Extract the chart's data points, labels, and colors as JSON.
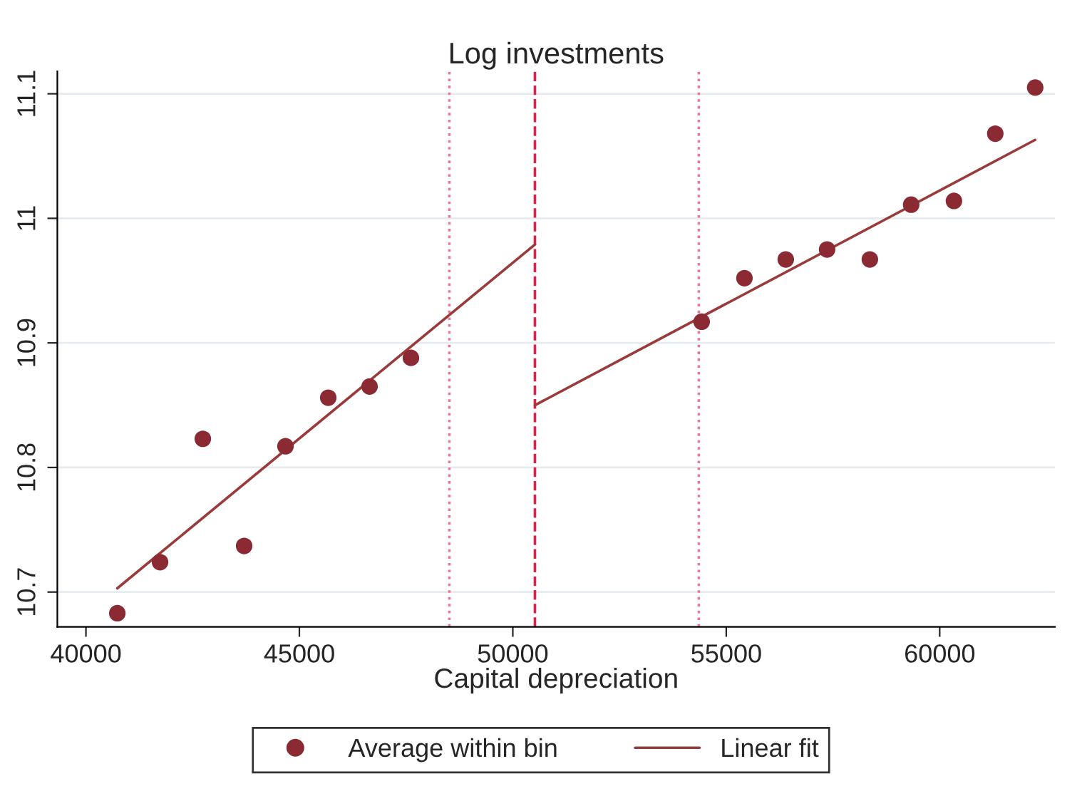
{
  "chart_data": {
    "type": "scatter",
    "title": "Log investments",
    "xlabel": "Capital depreciation",
    "xlim": [
      39330,
      62700
    ],
    "xticks": [
      40000,
      45000,
      50000,
      55000,
      60000
    ],
    "ylim": [
      10.672,
      11.118
    ],
    "yticks": [
      10.7,
      10.8,
      10.9,
      11,
      11.1
    ],
    "grid": "y",
    "legend": "bottom",
    "series": [
      {
        "name": "Average within bin",
        "marker": "circle",
        "color": "#8b2a33",
        "x": [
          40735,
          41736,
          42738,
          43706,
          44674,
          45676,
          46644,
          47613,
          54424,
          55426,
          56394,
          57362,
          58364,
          59332,
          60334,
          61302,
          62237
        ],
        "values": [
          10.683,
          10.724,
          10.823,
          10.737,
          10.817,
          10.856,
          10.865,
          10.888,
          10.917,
          10.952,
          10.967,
          10.975,
          10.967,
          11.011,
          11.014,
          11.068,
          11.105
        ]
      },
      {
        "name": "Linear fit",
        "type": "line",
        "marker": "none",
        "color": "#9b3a3a",
        "x": [
          40735,
          50518
        ],
        "values": [
          10.703,
          10.979
        ]
      },
      {
        "type": "line",
        "marker": "none",
        "color": "#9b3a3a",
        "x": [
          50518,
          62237
        ],
        "values": [
          10.85,
          11.063
        ]
      }
    ],
    "ref_lines": [
      {
        "axis": "x",
        "value": 50518,
        "color": "#e0204a",
        "line_style": "dashed"
      },
      {
        "axis": "x",
        "value": 48514,
        "color": "#e87a96",
        "line_style": "dotted"
      },
      {
        "axis": "x",
        "value": 54357,
        "color": "#e87a96",
        "line_style": "dotted"
      }
    ]
  }
}
